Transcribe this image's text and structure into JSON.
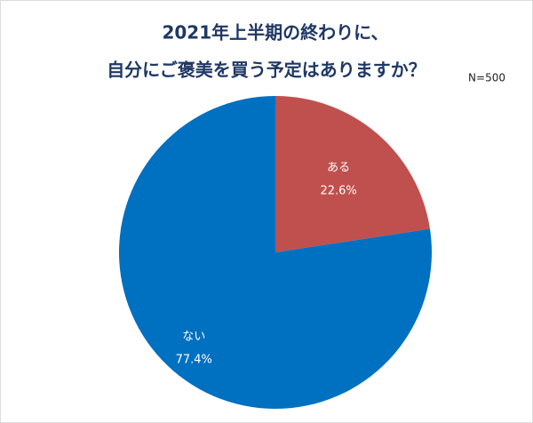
{
  "chart_data": {
    "type": "pie",
    "title": [
      "2021年上半期の終わりに、",
      "自分にご褒美を買う予定はありますか？"
    ],
    "subtitle": "N=500",
    "categories": [
      "ある",
      "ない"
    ],
    "values": [
      22.6,
      77.4
    ],
    "value_labels": [
      "22.6%",
      "77.4%"
    ],
    "colors": [
      "#c0504d",
      "#0070c0"
    ]
  }
}
